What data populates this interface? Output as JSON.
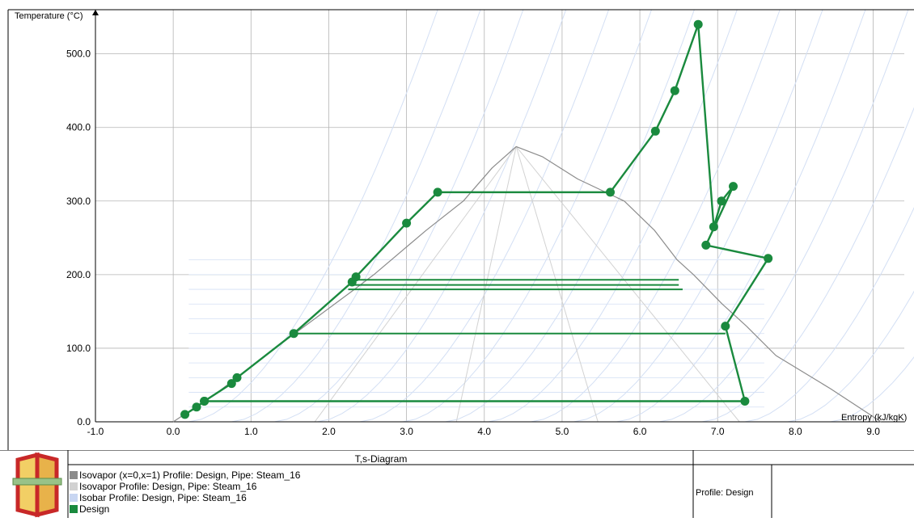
{
  "chart_data": {
    "type": "line",
    "title": "T,s-Diagram",
    "xlabel": "Entropy (kJ/kgK)",
    "ylabel": "Temperature (°C)",
    "xlim": [
      -1.0,
      9.4
    ],
    "ylim": [
      0,
      560
    ],
    "x_ticks": [
      "-1.0",
      "0.0",
      "1.0",
      "2.0",
      "3.0",
      "4.0",
      "5.0",
      "6.0",
      "7.0",
      "8.0",
      "9.0"
    ],
    "y_ticks": [
      "0.0",
      "100.0",
      "200.0",
      "300.0",
      "400.0",
      "500.0"
    ],
    "grid": true,
    "series": [
      {
        "name": "Isovapor (x=0,x=1) Profile: Design, Pipe: Steam_16",
        "color": "#8c8c8c",
        "points": [
          [
            0.0,
            0
          ],
          [
            0.57,
            40
          ],
          [
            1.31,
            100
          ],
          [
            2.33,
            180
          ],
          [
            2.58,
            200
          ],
          [
            3.25,
            260
          ],
          [
            3.73,
            300
          ],
          [
            4.1,
            345
          ],
          [
            4.41,
            374
          ],
          [
            4.75,
            360
          ],
          [
            5.2,
            330
          ],
          [
            5.8,
            300
          ],
          [
            6.19,
            260
          ],
          [
            6.48,
            220
          ],
          [
            6.69,
            200
          ],
          [
            7.06,
            160
          ],
          [
            7.37,
            130
          ],
          [
            7.75,
            90
          ],
          [
            8.45,
            45
          ],
          [
            9.1,
            0
          ]
        ]
      },
      {
        "name": "Isovapor Profile: Design, Pipe: Steam_16",
        "color": "#d2d2d2",
        "points": [
          [
            3.0,
            0
          ],
          [
            3.1,
            80
          ],
          [
            3.3,
            180
          ],
          [
            3.7,
            280
          ],
          [
            4.41,
            374
          ],
          [
            5.0,
            290
          ],
          [
            5.6,
            170
          ],
          [
            6.0,
            80
          ],
          [
            6.1,
            0
          ]
        ]
      },
      {
        "name": "Isobar Profile: Design, Pipe: Steam_16",
        "color": "#c8d6f2",
        "points": [
          [
            0.0,
            0
          ],
          [
            4.5,
            0
          ],
          [
            6.5,
            500
          ],
          [
            7.4,
            800
          ]
        ]
      },
      {
        "name": "Design",
        "color": "#1a8a3e",
        "points": [
          [
            0.15,
            10
          ],
          [
            0.3,
            20
          ],
          [
            0.4,
            28
          ],
          [
            0.75,
            52
          ],
          [
            0.82,
            60
          ],
          [
            1.55,
            120
          ],
          [
            2.3,
            190
          ],
          [
            2.35,
            197
          ],
          [
            3.0,
            270
          ],
          [
            3.4,
            312
          ],
          [
            5.62,
            312
          ],
          [
            6.2,
            395
          ],
          [
            6.45,
            450
          ],
          [
            6.75,
            540
          ],
          [
            6.95,
            265
          ],
          [
            7.05,
            300
          ],
          [
            7.2,
            320
          ],
          [
            6.85,
            240
          ],
          [
            7.65,
            222
          ],
          [
            7.1,
            130
          ],
          [
            7.35,
            28
          ],
          [
            0.4,
            28
          ]
        ]
      }
    ]
  },
  "legend": {
    "title": "T,s-Diagram",
    "items": [
      {
        "label": "Isovapor (x=0,x=1) Profile: Design, Pipe: Steam_16",
        "color": "#8c8c8c"
      },
      {
        "label": "Isovapor Profile: Design, Pipe: Steam_16",
        "color": "#d2d2d2"
      },
      {
        "label": "Isobar Profile: Design, Pipe: Steam_16",
        "color": "#c8d6f2"
      },
      {
        "label": "Design",
        "color": "#1a8a3e"
      }
    ],
    "profile_label": "Profile: Design"
  }
}
